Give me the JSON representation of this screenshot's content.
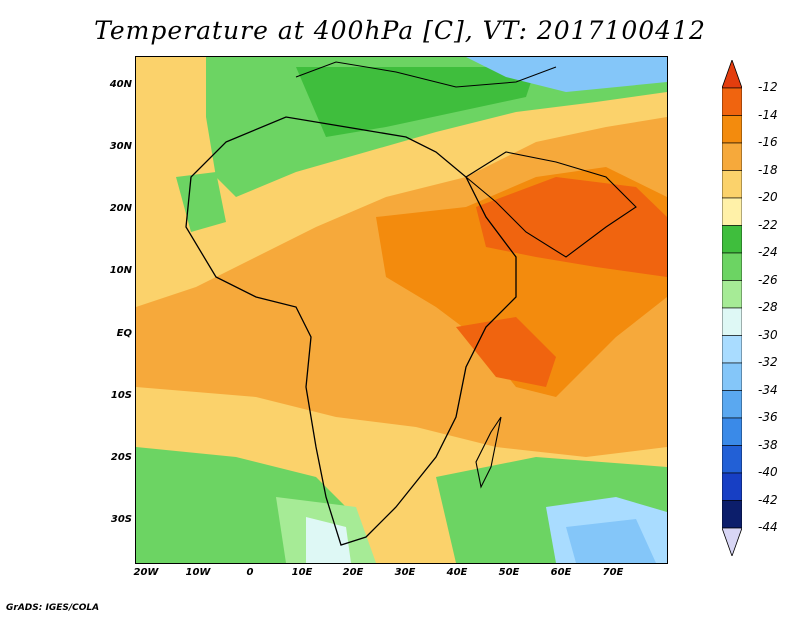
{
  "title": "Temperature at 400hPa [C], VT: 2017100412",
  "footer": "GrADS: IGES/COLA",
  "map": {
    "lon_range": [
      -23,
      80
    ],
    "lat_range": [
      -37,
      45
    ],
    "x_ticks": [
      "20W",
      "10W",
      "0",
      "10E",
      "20E",
      "30E",
      "40E",
      "50E",
      "60E",
      "70E"
    ],
    "y_ticks": [
      "40N",
      "30N",
      "20N",
      "10N",
      "EQ",
      "10S",
      "20S",
      "30S"
    ]
  },
  "colorbar": {
    "labels": [
      "-12",
      "-14",
      "-16",
      "-18",
      "-20",
      "-22",
      "-24",
      "-26",
      "-28",
      "-30",
      "-32",
      "-34",
      "-36",
      "-38",
      "-40",
      "-42",
      "-44"
    ],
    "colors": [
      "#e33d0e",
      "#f0640f",
      "#f38b0d",
      "#f6a93b",
      "#fbd26b",
      "#fff1a8",
      "#3fbe3d",
      "#6cd463",
      "#a6eb96",
      "#def8f5",
      "#a9dcff",
      "#84c6f9",
      "#5aa8f0",
      "#3a8ae8",
      "#2260d6",
      "#173fc4",
      "#0c1e6b"
    ],
    "top_arrow_color": "#e33d0e",
    "bottom_arrow_color": "#d8d6f5"
  }
}
